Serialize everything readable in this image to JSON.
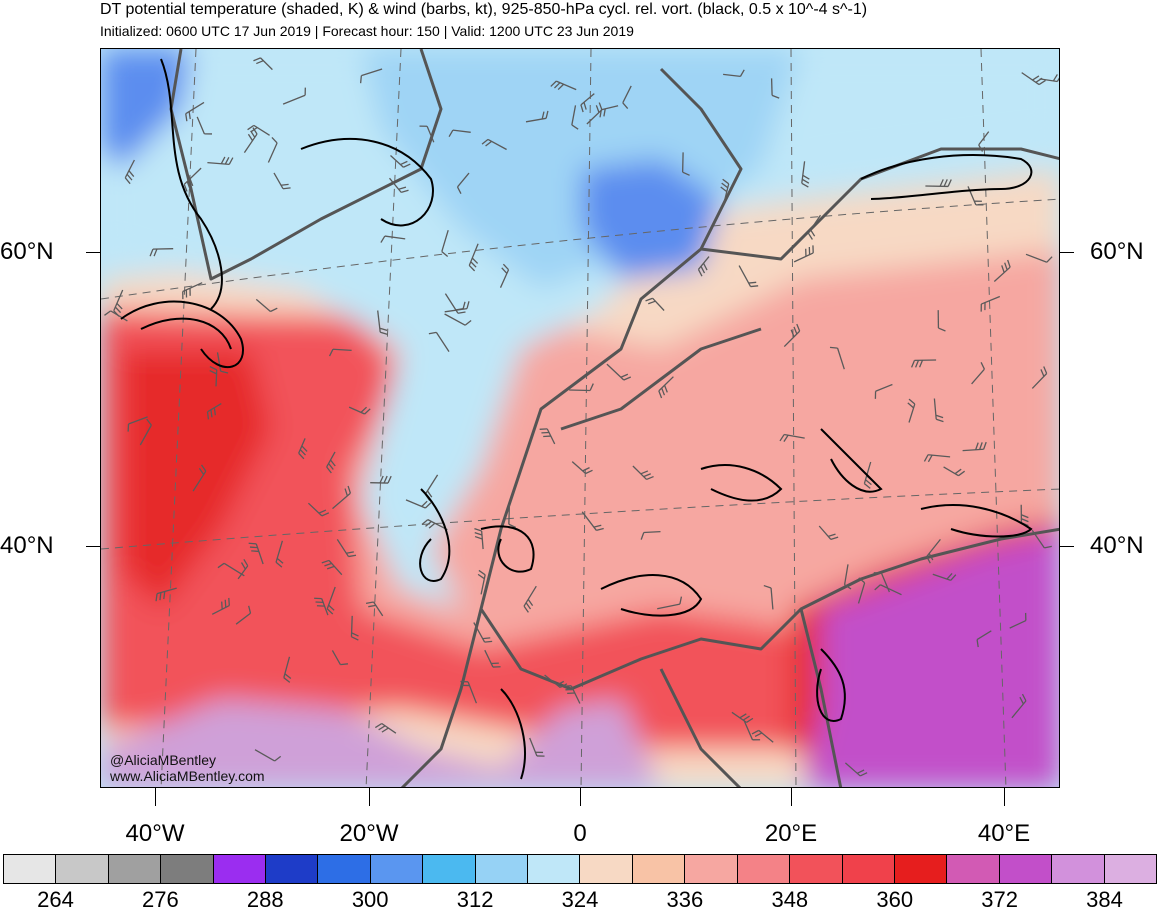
{
  "header": {
    "title": "DT potential temperature (shaded, K) & wind (barbs, kt), 925-850-hPa cycl. rel. vort. (black, 0.5 x 10^-4 s^-1)",
    "subtitle": "Initialized: 0600 UTC 17 Jun 2019 | Forecast hour: 150 | Valid: 1200 UTC 23 Jun 2019"
  },
  "map": {
    "region": "North Atlantic and Europe",
    "lat_labels": [
      "60°N",
      "40°N"
    ],
    "lon_labels": [
      "40°W",
      "20°W",
      "0",
      "20°E",
      "40°E"
    ],
    "credit_handle": "@AliciaMBentley",
    "credit_site": "www.AliciaMBentley.com",
    "colors": {
      "cold_blue": "#5b8def",
      "cool_blue": "#9fd4f5",
      "light_cyan": "#bfe7f8",
      "peach": "#f7d9c4",
      "salmon": "#f6a7a1",
      "warm_red": "#f2525a",
      "hot_red": "#e62a2a",
      "magenta": "#c24fc9",
      "lavender": "#cfa0d8",
      "contour": "#000000",
      "coastline": "#555555",
      "barb": "#5a5a5a"
    }
  },
  "colorbar": {
    "colors": [
      "#e6e6e6",
      "#c8c8c8",
      "#a0a0a0",
      "#7d7d7d",
      "#9b2df0",
      "#1e3cc8",
      "#2d6ee6",
      "#5a96f0",
      "#4bb9f0",
      "#96d2f5",
      "#bfe7f8",
      "#f7d9c4",
      "#f8c3a6",
      "#f6a7a1",
      "#f48287",
      "#f2525a",
      "#f0414b",
      "#e61e1e",
      "#d25ab4",
      "#c24fc9",
      "#d291dc",
      "#dcafe1"
    ],
    "labels": [
      "264",
      "276",
      "288",
      "300",
      "312",
      "324",
      "336",
      "348",
      "360",
      "372",
      "384"
    ]
  }
}
